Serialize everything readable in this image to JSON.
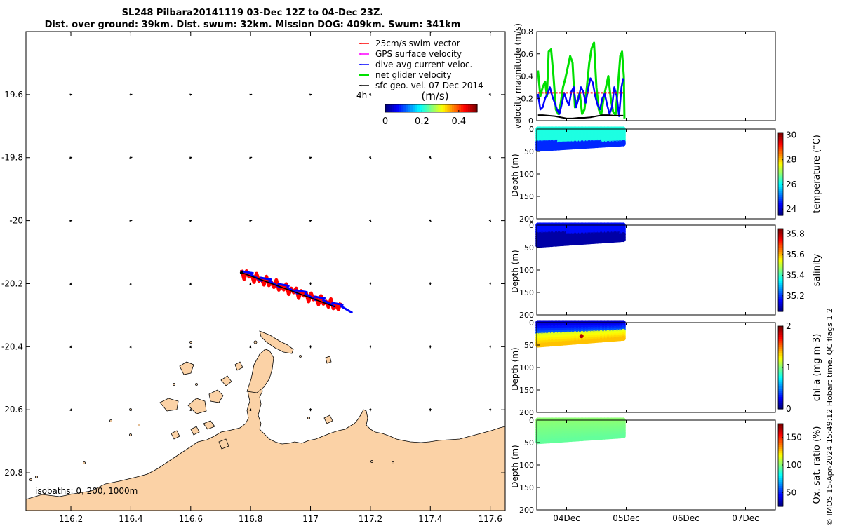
{
  "title_line1": "SL248 Pilbara20141119 03-Dec 12Z to 04-Dec 23Z.",
  "title_line2": "Dist. over ground: 39km. Dist. swum: 32km. Mission DOG: 409km. Swum: 341km",
  "credit": "© IMOS 15-Apr-2024 15:49:12 Hobart time. QC flags 1  2",
  "colors": {
    "land": "#fbd2a6",
    "land_edge": "#000000",
    "swim": "#ff0000",
    "gps": "#ff00ff",
    "dive_avg": "#0000ff",
    "net": "#00e000",
    "sfc_geo": "#000000"
  },
  "map": {
    "xlim": [
      116.05,
      117.65
    ],
    "ylim": [
      -20.92,
      -19.4
    ],
    "xticks": [
      "116.2",
      "116.4",
      "116.6",
      "116.8",
      "117",
      "117.2",
      "117.4",
      "117.6"
    ],
    "yticks": [
      "-19.6",
      "-19.8",
      "-20",
      "-20.2",
      "-20.4",
      "-20.6",
      "-20.8"
    ],
    "isobaths_label": "isobaths: 0, 200, 1000m",
    "time_label": "4h",
    "colorbar": {
      "label": "(m/s)",
      "ticks": [
        "0",
        "0.2",
        "0.4"
      ],
      "range": [
        0,
        0.5
      ],
      "colormap": "jet"
    },
    "legend": [
      {
        "label": "25cm/s swim vector",
        "color": "#ff0000"
      },
      {
        "label": "GPS surface velocity",
        "color": "#ff00ff"
      },
      {
        "label": "dive-avg current veloc.",
        "color": "#0000ff"
      },
      {
        "label": "net glider velocity",
        "color": "#00e000"
      },
      {
        "label": "sfc geo. vel. 07-Dec-2014",
        "color": "#000000"
      }
    ]
  },
  "chart_data": [
    {
      "type": "line",
      "ylabel": "velocity magnitude (m/s)",
      "ylim": [
        0,
        0.8
      ],
      "yticks": [
        "0",
        "0.2",
        "0.4",
        "0.6",
        "0.8"
      ],
      "x_unit": "day of December 2014",
      "xlim": [
        3.5,
        7.5
      ],
      "series": [
        {
          "name": "net glider velocity",
          "color": "#00e000",
          "x": [
            3.52,
            3.56,
            3.6,
            3.64,
            3.67,
            3.7,
            3.74,
            3.78,
            3.82,
            3.86,
            3.9,
            3.94,
            3.98,
            4.02,
            4.06,
            4.1,
            4.14,
            4.18,
            4.22,
            4.26,
            4.3,
            4.34,
            4.38,
            4.42,
            4.46,
            4.5,
            4.54,
            4.58,
            4.62,
            4.66,
            4.7,
            4.74,
            4.78,
            4.82,
            4.86,
            4.9,
            4.93,
            4.96,
            4.97
          ],
          "y": [
            0.45,
            0.22,
            0.3,
            0.35,
            0.22,
            0.62,
            0.64,
            0.4,
            0.1,
            0.06,
            0.15,
            0.3,
            0.38,
            0.48,
            0.58,
            0.52,
            0.12,
            0.18,
            0.25,
            0.06,
            0.1,
            0.3,
            0.52,
            0.65,
            0.7,
            0.3,
            0.1,
            0.05,
            0.2,
            0.3,
            0.4,
            0.2,
            0.08,
            0.05,
            0.3,
            0.58,
            0.62,
            0.4,
            0.02
          ]
        },
        {
          "name": "dive-avg current veloc.",
          "color": "#0000ff",
          "x": [
            3.52,
            3.56,
            3.6,
            3.64,
            3.68,
            3.72,
            3.76,
            3.8,
            3.84,
            3.88,
            3.92,
            3.96,
            4.0,
            4.04,
            4.08,
            4.12,
            4.16,
            4.2,
            4.24,
            4.28,
            4.32,
            4.36,
            4.4,
            4.44,
            4.48,
            4.52,
            4.56,
            4.6,
            4.64,
            4.68,
            4.72,
            4.76,
            4.8,
            4.84,
            4.88,
            4.92,
            4.95
          ],
          "y": [
            0.24,
            0.1,
            0.12,
            0.2,
            0.24,
            0.3,
            0.22,
            0.16,
            0.1,
            0.06,
            0.15,
            0.25,
            0.18,
            0.14,
            0.26,
            0.3,
            0.12,
            0.2,
            0.3,
            0.26,
            0.16,
            0.28,
            0.38,
            0.34,
            0.22,
            0.14,
            0.1,
            0.2,
            0.24,
            0.14,
            0.06,
            0.12,
            0.3,
            0.22,
            0.04,
            0.3,
            0.38
          ]
        },
        {
          "name": "25cm/s swim vector",
          "color": "#ff0000",
          "x": [
            3.52,
            4.95
          ],
          "y": [
            0.25,
            0.25
          ]
        },
        {
          "name": "sfc geo. vel. 07-Dec-2014",
          "color": "#000000",
          "x": [
            3.52,
            3.6,
            3.7,
            3.8,
            3.9,
            4.0,
            4.1,
            4.2,
            4.3,
            4.4,
            4.5,
            4.6,
            4.7,
            4.8,
            4.9,
            4.95
          ],
          "y": [
            0.05,
            0.05,
            0.045,
            0.04,
            0.03,
            0.02,
            0.02,
            0.025,
            0.025,
            0.03,
            0.04,
            0.05,
            0.05,
            0.045,
            0.045,
            0.045
          ]
        }
      ]
    },
    {
      "type": "scatter",
      "variable": "temperature",
      "ylabel": "Depth (m)",
      "colorbar_label": "temperature (°C)",
      "clim": [
        23.5,
        30.2
      ],
      "colorbar_ticks": [
        "24",
        "26",
        "28",
        "30"
      ],
      "ylim": [
        0,
        200
      ],
      "yticks": [
        "0",
        "50",
        "100",
        "150",
        "200"
      ],
      "x_range": [
        3.52,
        4.95
      ],
      "depth_shallow": 28,
      "depth_bottom": [
        45,
        33
      ],
      "surface_value": 26.2,
      "deep_value": 24.6
    },
    {
      "type": "scatter",
      "variable": "salinity",
      "ylabel": "Depth (m)",
      "colorbar_label": "salinity",
      "clim": [
        35.05,
        35.85
      ],
      "colorbar_ticks": [
        "35.2",
        "35.4",
        "35.6",
        "35.8"
      ],
      "ylim": [
        0,
        200
      ],
      "yticks": [
        "0",
        "50",
        "100",
        "150",
        "200"
      ],
      "x_range": [
        3.52,
        4.95
      ],
      "depth_shallow": 18,
      "depth_bottom": [
        45,
        32
      ],
      "surface_value": 35.16,
      "deep_value": 35.08
    },
    {
      "type": "scatter",
      "variable": "chl-a",
      "ylabel": "Depth (m)",
      "colorbar_label": "chl-a (mg m-3)",
      "clim": [
        0,
        2
      ],
      "colorbar_ticks": [
        "0",
        "1",
        "2"
      ],
      "ylim": [
        0,
        200
      ],
      "yticks": [
        "0",
        "50",
        "100",
        "150",
        "200"
      ],
      "x_range": [
        3.52,
        4.95
      ],
      "depth_shallow": 20,
      "depth_bottom": [
        50,
        35
      ],
      "surface_value": 0.15,
      "deep_value": 1.15,
      "max_value": 1.9
    },
    {
      "type": "scatter",
      "variable": "Ox. sat. ratio",
      "ylabel": "Depth (m)",
      "colorbar_label": "Ox. sat. ratio (%)",
      "clim": [
        25,
        175
      ],
      "colorbar_ticks": [
        "50",
        "100",
        "150"
      ],
      "ylim": [
        0,
        200
      ],
      "yticks": [
        "0",
        "50",
        "100",
        "150",
        "200"
      ],
      "x_range": [
        3.52,
        4.95
      ],
      "depth_shallow": 0,
      "depth_bottom": [
        48,
        35
      ],
      "surface_value": 102,
      "deep_value": 95
    }
  ],
  "time_axis": {
    "xlim": [
      3.5,
      7.5
    ],
    "ticks": [
      4,
      5,
      6,
      7
    ],
    "labels": [
      "04Dec",
      "05Dec",
      "06Dec",
      "07Dec"
    ]
  }
}
